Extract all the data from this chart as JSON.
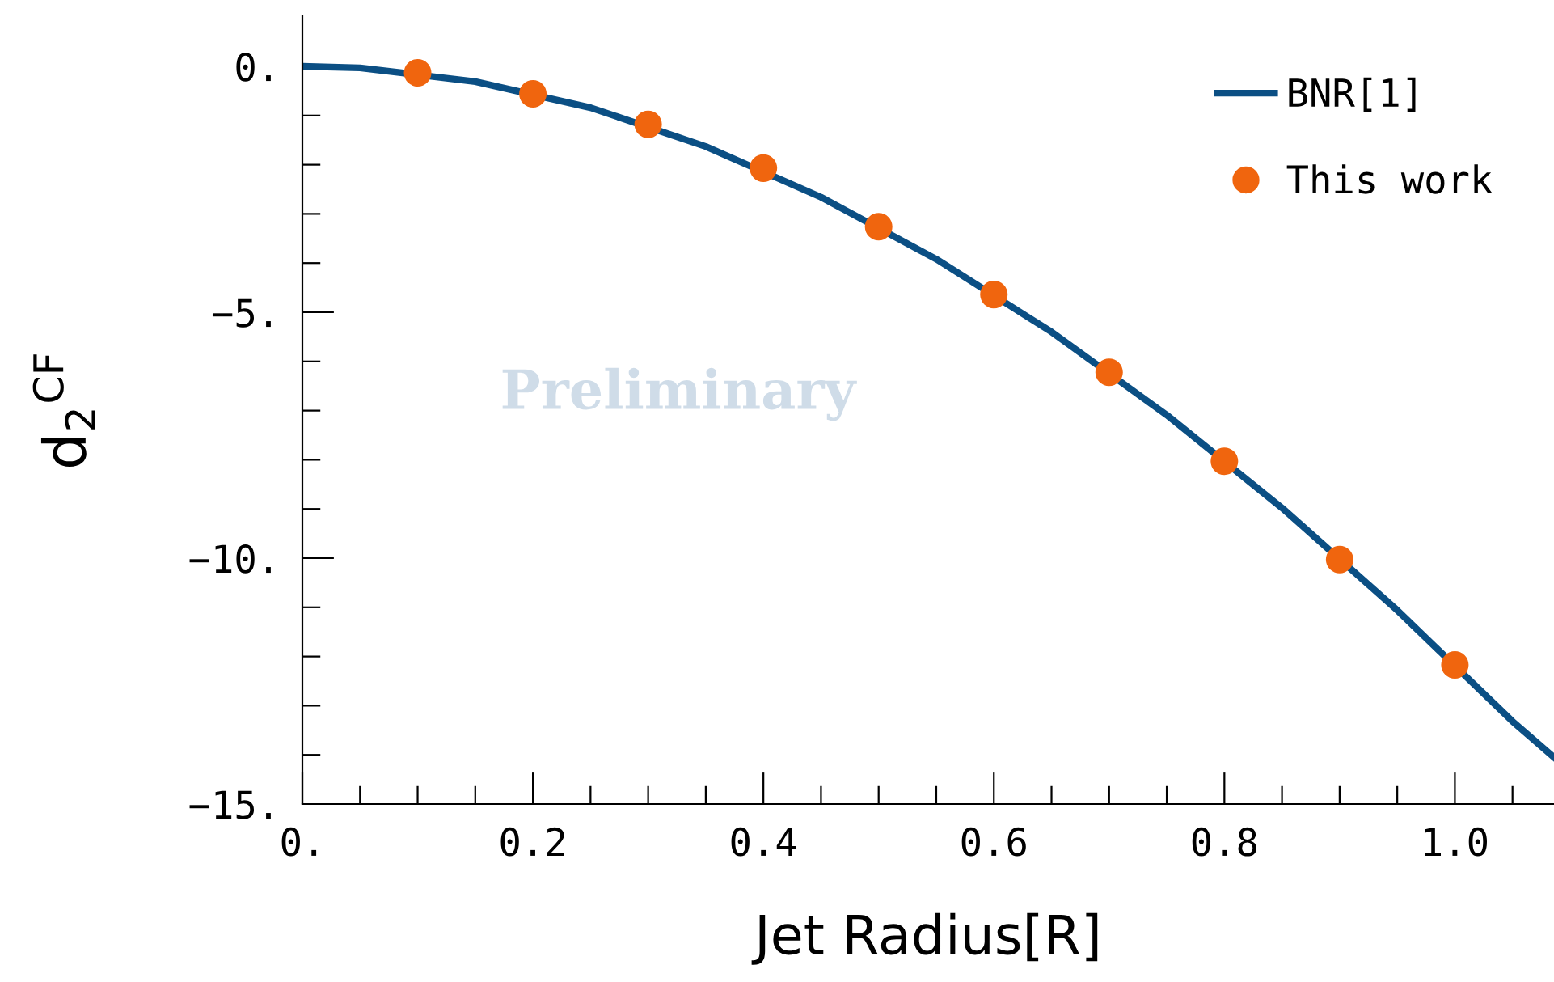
{
  "chart_data": {
    "type": "line",
    "xlabel": "Jet Radius[R]",
    "ylabel": "d$_{2}$$^{CF}$",
    "annotations": [
      "Preliminary"
    ],
    "xlim": [
      0,
      1.086
    ],
    "ylim": [
      -15,
      1.02
    ],
    "xticks": [
      {
        "value": 0,
        "label": "0."
      },
      {
        "value": 0.05,
        "label": null
      },
      {
        "value": 0.1,
        "label": null
      },
      {
        "value": 0.15,
        "label": null
      },
      0.2,
      {
        "value": 0.25,
        "label": null
      },
      {
        "value": 0.3,
        "label": null
      },
      {
        "value": 0.35,
        "label": null
      },
      0.4,
      {
        "value": 0.45,
        "label": null
      },
      {
        "value": 0.5,
        "label": null
      },
      {
        "value": 0.55,
        "label": null
      },
      0.6,
      {
        "value": 0.65,
        "label": null
      },
      {
        "value": 0.7,
        "label": null
      },
      {
        "value": 0.75,
        "label": null
      },
      0.8,
      {
        "value": 0.85,
        "label": null
      },
      {
        "value": 0.9,
        "label": null
      },
      {
        "value": 0.95,
        "label": null
      },
      {
        "value": 1.0,
        "label": "1.0"
      },
      {
        "value": 1.05,
        "label": null
      }
    ],
    "yticks": [
      {
        "value": 0,
        "label": "0."
      },
      {
        "value": -1,
        "label": null
      },
      {
        "value": -2,
        "label": null
      },
      {
        "value": -3,
        "label": null
      },
      {
        "value": -4,
        "label": null
      },
      {
        "value": -5,
        "label": "−5."
      },
      {
        "value": -6,
        "label": null
      },
      {
        "value": -7,
        "label": null
      },
      {
        "value": -8,
        "label": null
      },
      {
        "value": -9,
        "label": null
      },
      {
        "value": -10,
        "label": "−10."
      },
      {
        "value": -11,
        "label": null
      },
      {
        "value": -12,
        "label": null
      },
      {
        "value": -13,
        "label": null
      },
      {
        "value": -14,
        "label": null
      },
      {
        "value": -15,
        "label": "−15."
      }
    ],
    "grid": false,
    "legend": "top right",
    "series": [
      {
        "name": "BNR[1]",
        "color": "#0b4f84",
        "marker": "none",
        "line_style": "solid",
        "x": [
          0,
          0.05,
          0.15,
          0.25,
          0.35,
          0.45,
          0.55,
          0.65,
          0.75,
          0.85,
          0.95,
          1.05,
          1.086
        ],
        "values": [
          0,
          -0.03,
          -0.31,
          -0.84,
          -1.63,
          -2.66,
          -3.92,
          -5.4,
          -7.09,
          -8.98,
          -11.06,
          -13.32,
          -14.05
        ]
      },
      {
        "name": "This work",
        "type": "scatter",
        "color": "#f0650e",
        "marker": "circle",
        "x": [
          0.1,
          0.2,
          0.3,
          0.4,
          0.5,
          0.6,
          0.7,
          0.8,
          0.9,
          1.0
        ],
        "values": [
          -0.13,
          -0.56,
          -1.18,
          -2.07,
          -3.26,
          -4.64,
          -6.22,
          -8.03,
          -10.03,
          -12.17
        ]
      }
    ]
  }
}
